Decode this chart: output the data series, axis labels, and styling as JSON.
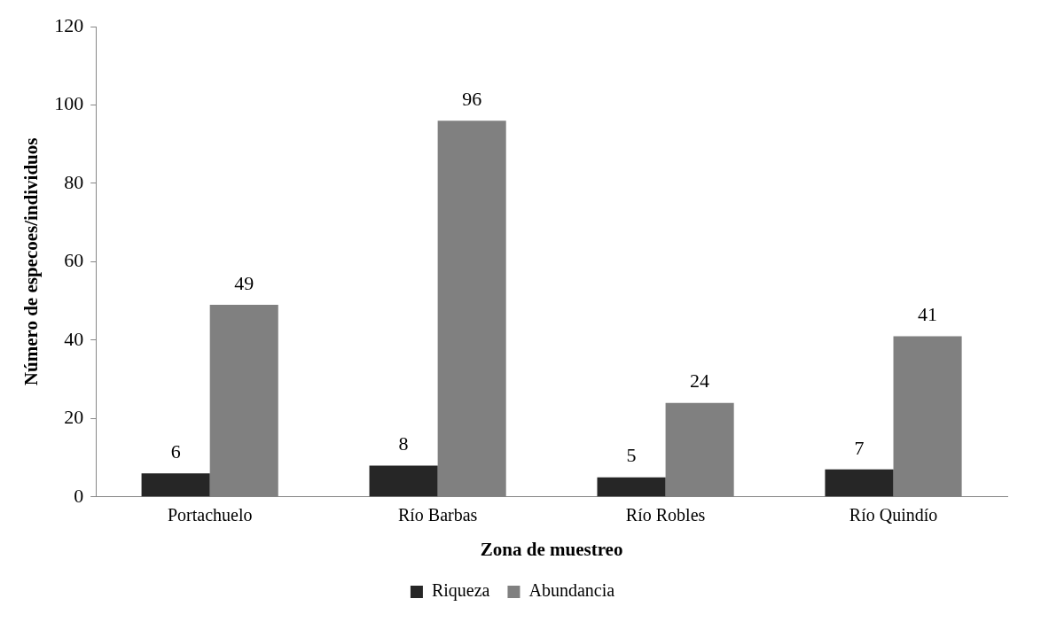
{
  "chart_data": {
    "type": "bar",
    "xlabel": "Zona de muestreo",
    "ylabel": "Número de especoes/individuos",
    "categories": [
      "Portachuelo",
      "Río Barbas",
      "Río Robles",
      "Río Quindío"
    ],
    "series": [
      {
        "name": "Riqueza",
        "color": "#262626",
        "values": [
          6,
          8,
          5,
          7
        ]
      },
      {
        "name": "Abundancia",
        "color": "#808080",
        "values": [
          49,
          96,
          24,
          41
        ]
      }
    ],
    "ylim": [
      0,
      120
    ],
    "yticks": [
      0,
      20,
      40,
      60,
      80,
      100,
      120
    ],
    "grid": false,
    "legend": "bottom",
    "data_labels": true
  }
}
